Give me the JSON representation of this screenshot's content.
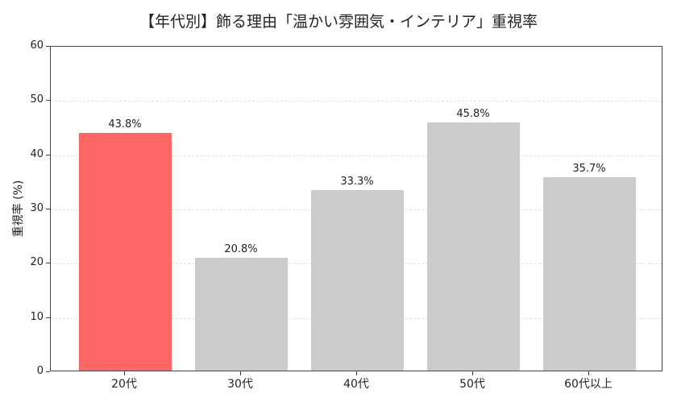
{
  "chart_data": {
    "type": "bar",
    "title": "【年代別】飾る理由「温かい雰囲気・インテリア」重視率",
    "xlabel": "",
    "ylabel": "重視率 (%)",
    "ylim": [
      0,
      60
    ],
    "yticks": [
      0,
      10,
      20,
      30,
      40,
      50,
      60
    ],
    "grid": true,
    "categories": [
      "20代",
      "30代",
      "40代",
      "50代",
      "60代以上"
    ],
    "values": [
      43.8,
      20.8,
      33.3,
      45.8,
      35.7
    ],
    "value_labels": [
      "43.8%",
      "20.8%",
      "33.3%",
      "45.8%",
      "35.7%"
    ],
    "colors": [
      "#ff6666",
      "#cccccc",
      "#cccccc",
      "#cccccc",
      "#cccccc"
    ],
    "highlight_category": "20代"
  }
}
